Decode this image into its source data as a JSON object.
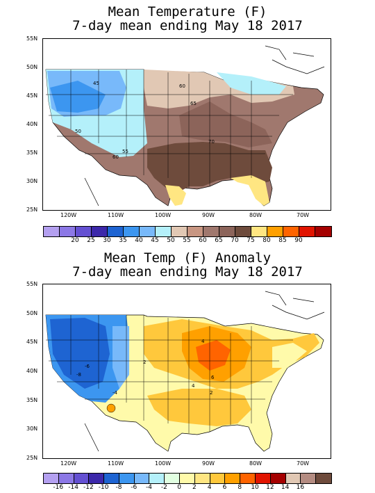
{
  "panels": [
    {
      "title_line1": "Mean Temperature (F)",
      "title_line2": "7-day mean ending May 18 2017",
      "lat_labels": [
        "55N",
        "50N",
        "45N",
        "40N",
        "35N",
        "30N",
        "25N"
      ],
      "lon_labels": [
        "120W",
        "110W",
        "100W",
        "90W",
        "80W",
        "70W"
      ],
      "contour_labels": [
        "45",
        "50",
        "55",
        "60",
        "60",
        "65",
        "70"
      ],
      "colorbar_colors": [
        "#b4a0f0",
        "#8c78e6",
        "#6450d2",
        "#3c28aa",
        "#1e64d2",
        "#3c96f0",
        "#78b9fa",
        "#b4f0fa",
        "#e1c8b4",
        "#c89682",
        "#a0786e",
        "#8c645a",
        "#6e4b3c",
        "#ffe682",
        "#ffa000",
        "#ff6400",
        "#e11400",
        "#a50000"
      ],
      "colorbar_labels": [
        "20",
        "25",
        "30",
        "35",
        "40",
        "45",
        "50",
        "55",
        "60",
        "65",
        "70",
        "75",
        "80",
        "85",
        "90"
      ]
    },
    {
      "title_line1": "Mean Temp (F) Anomaly",
      "title_line2": "7-day mean ending May 18 2017",
      "lat_labels": [
        "55N",
        "50N",
        "45N",
        "40N",
        "35N",
        "30N",
        "25N"
      ],
      "lon_labels": [
        "120W",
        "110W",
        "100W",
        "90W",
        "80W",
        "70W"
      ],
      "contour_labels": [
        "-6",
        "-8",
        "-4",
        "2",
        "4",
        "6",
        "4",
        "2"
      ],
      "colorbar_colors": [
        "#b4a0f0",
        "#8c78e6",
        "#6450d2",
        "#3c28aa",
        "#1e64d2",
        "#3c96f0",
        "#78b9fa",
        "#b4f0fa",
        "#e1ffe1",
        "#fffaaa",
        "#ffe682",
        "#ffc83c",
        "#ffa000",
        "#ff6400",
        "#e11400",
        "#a50000",
        "#e1c8b4",
        "#b48c82",
        "#6e4b3c"
      ],
      "colorbar_labels": [
        "-16",
        "-14",
        "-12",
        "-10",
        "-8",
        "-6",
        "-4",
        "-2",
        "0",
        "2",
        "4",
        "6",
        "8",
        "10",
        "12",
        "14",
        "16"
      ]
    }
  ]
}
